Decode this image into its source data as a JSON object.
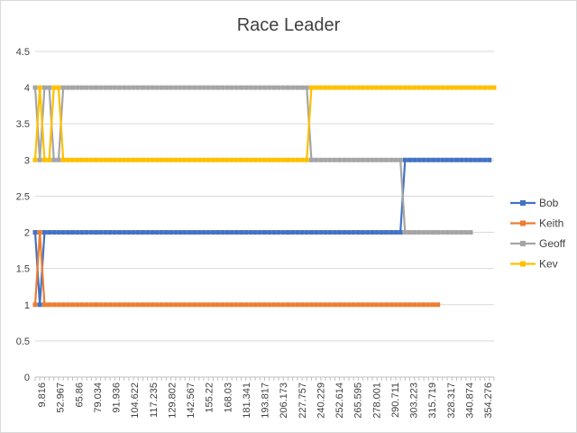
{
  "chart_data": {
    "type": "line",
    "title": "Race Leader",
    "xlabel": "",
    "ylabel": "",
    "ylim": [
      0,
      4.5
    ],
    "yticks": [
      "0",
      "0.5",
      "1",
      "1.5",
      "2",
      "2.5",
      "3",
      "3.5",
      "4",
      "4.5"
    ],
    "x_tick_labels": [
      "9.816",
      "52.967",
      "65.86",
      "79.034",
      "91.936",
      "104.622",
      "117.235",
      "129.802",
      "142.567",
      "155.22",
      "168.03",
      "181.341",
      "193.817",
      "206.173",
      "227.757",
      "240.229",
      "252.614",
      "265.595",
      "278.001",
      "290.711",
      "303.223",
      "315.719",
      "328.317",
      "340.874",
      "354.276"
    ],
    "legend_position": "right",
    "grid": true,
    "series": [
      {
        "name": "Bob",
        "color": "#4472C4",
        "segments": [
          {
            "from": 0,
            "to": 1,
            "value": 2
          },
          {
            "from": 1,
            "to": 2,
            "value": 1
          },
          {
            "from": 2,
            "to": 79,
            "value": 2
          },
          {
            "from": 79,
            "to": 97,
            "value": 3
          }
        ]
      },
      {
        "name": "Keith",
        "color": "#ED7D31",
        "segments": [
          {
            "from": 0,
            "to": 1,
            "value": 1
          },
          {
            "from": 1,
            "to": 2,
            "value": 2
          },
          {
            "from": 2,
            "to": 86,
            "value": 1
          }
        ]
      },
      {
        "name": "Geoff",
        "color": "#A5A5A5",
        "segments": [
          {
            "from": 0,
            "to": 1,
            "value": 4
          },
          {
            "from": 1,
            "to": 2,
            "value": 3
          },
          {
            "from": 2,
            "to": 4,
            "value": 4
          },
          {
            "from": 4,
            "to": 6,
            "value": 3
          },
          {
            "from": 6,
            "to": 59,
            "value": 4
          },
          {
            "from": 59,
            "to": 79,
            "value": 3
          },
          {
            "from": 79,
            "to": 93,
            "value": 2
          }
        ]
      },
      {
        "name": "Kev",
        "color": "#FFC000",
        "segments": [
          {
            "from": 0,
            "to": 1,
            "value": 3
          },
          {
            "from": 1,
            "to": 2,
            "value": 4
          },
          {
            "from": 2,
            "to": 4,
            "value": 3
          },
          {
            "from": 4,
            "to": 6,
            "value": 4
          },
          {
            "from": 6,
            "to": 59,
            "value": 3
          },
          {
            "from": 59,
            "to": 98,
            "value": 4
          }
        ]
      }
    ],
    "total_points": 99
  }
}
